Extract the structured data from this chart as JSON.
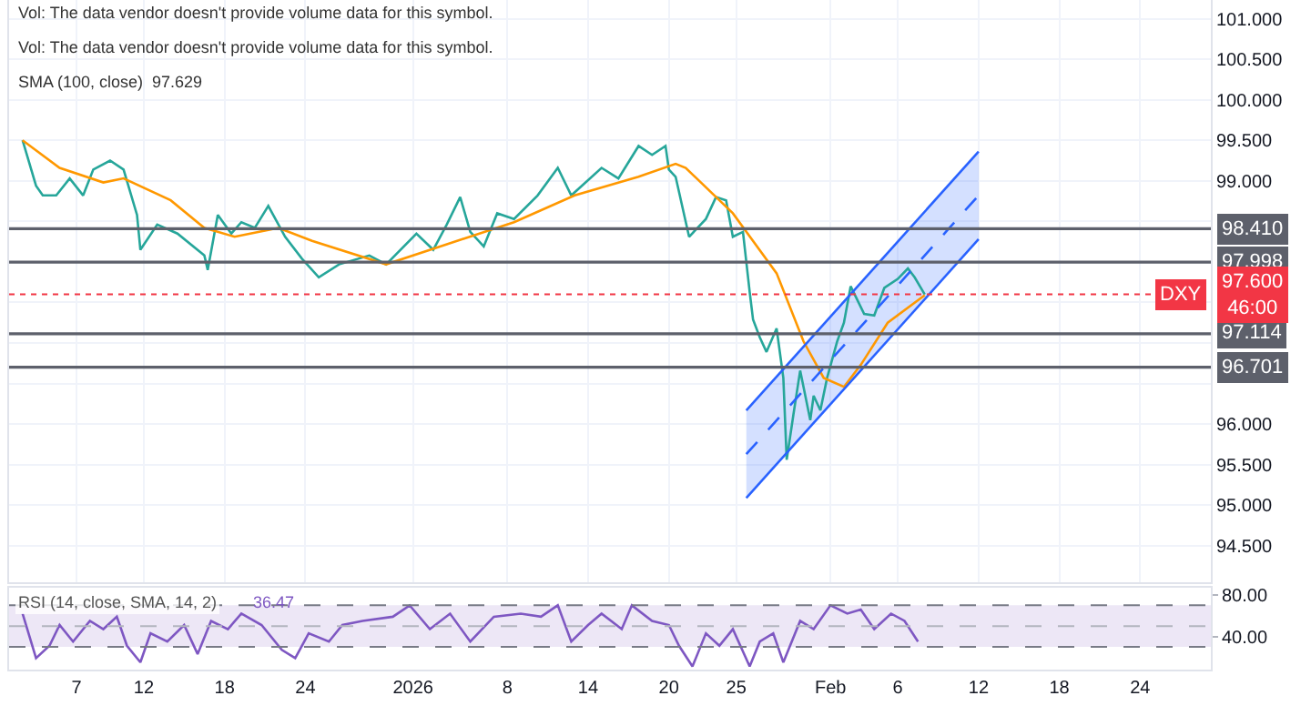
{
  "chart_data": [
    {
      "type": "line",
      "tick_labels": "y",
      "grid": true,
      "annotations": [
        "Vol: The data vendor doesn't provide volume data for this symbol.",
        "Vol: The data vendor doesn't provide volume data for this symbol.",
        "SMA (100, close)  97.629",
        {
          "text": "DXY",
          "y": 97.6
        }
      ],
      "xlim": [
        "2025-12-02",
        "2026-03-01T06:00"
      ],
      "xticks": [
        {
          "value": "2025-12-07",
          "label": null
        },
        {
          "value": "2025-12-12",
          "label": null
        },
        {
          "value": "2025-12-18",
          "label": null
        },
        {
          "value": "2025-12-24",
          "label": null
        },
        {
          "value": "2026-01-01",
          "label": null
        },
        {
          "value": "2026-01-08",
          "label": null
        },
        {
          "value": "2026-01-14",
          "label": null
        },
        {
          "value": "2026-01-20",
          "label": null
        },
        {
          "value": "2026-01-25",
          "label": null
        },
        {
          "value": "2026-02-01",
          "label": null
        },
        {
          "value": "2026-02-06",
          "label": null
        },
        {
          "value": "2026-02-12",
          "label": null
        },
        {
          "value": "2026-02-18",
          "label": null
        },
        {
          "value": "2026-02-24",
          "label": null
        }
      ],
      "ylim": [
        94.05,
        101.23
      ],
      "yticks": [
        {
          "value": 94.5,
          "label": "94.500"
        },
        {
          "value": 95,
          "label": "95.000"
        },
        {
          "value": 95.5,
          "label": "95.500"
        },
        {
          "value": 96,
          "label": "96.000"
        },
        {
          "value": 96.5,
          "label": null
        },
        {
          "value": 97,
          "label": null
        },
        {
          "value": 97.5,
          "label": null
        },
        {
          "value": 98,
          "label": null
        },
        {
          "value": 98.5,
          "label": null
        },
        {
          "value": 99,
          "label": "99.000"
        },
        {
          "value": 99.5,
          "label": "99.500"
        },
        {
          "value": 100,
          "label": "100.000"
        },
        {
          "value": 100.5,
          "label": "100.500"
        },
        {
          "value": 101,
          "label": "101.000"
        }
      ],
      "ref_lines": [
        {
          "axis": "y",
          "value": 98.41,
          "label": "98.410",
          "color": "#5d606b",
          "line_style": "solid"
        },
        {
          "axis": "y",
          "value": 97.998,
          "label": "97.998",
          "color": "#5d606b",
          "line_style": "solid"
        },
        {
          "axis": "y",
          "value": 97.114,
          "label": "97.114",
          "color": "#5d606b",
          "line_style": "solid"
        },
        {
          "axis": "y",
          "value": 96.701,
          "label": "96.701",
          "color": "#5d606b",
          "line_style": "solid"
        },
        {
          "axis": "y",
          "value": 97.6,
          "label": "97.600\n46:00",
          "color": "#f23645",
          "line_style": "dotted"
        }
      ],
      "series": [
        {
          "color": "#26a69a",
          "x": [
            "2025-12-03T00:00",
            "2025-12-04T00:00",
            "2025-12-04T12:00",
            "2025-12-05T12:00",
            "2025-12-06T12:00",
            "2025-12-07T12:00",
            "2025-12-08T06:00",
            "2025-12-09T12:00",
            "2025-12-10T12:00",
            "2025-12-11T12:00",
            "2025-12-11T18:00",
            "2025-12-13T00:00",
            "2025-12-14T12:00",
            "2025-12-16T12:00",
            "2025-12-16T18:00",
            "2025-12-17T12:00",
            "2025-12-18T12:00",
            "2025-12-19T06:00",
            "2025-12-20T06:00",
            "2025-12-21T06:00",
            "2025-12-22T12:00",
            "2025-12-23T18:00",
            "2025-12-25T00:00",
            "2025-12-26T12:00",
            "2025-12-28T18:00",
            "2025-12-30T00:00",
            "2026-01-01T06:00",
            "2026-01-02T12:00",
            "2026-01-03T12:00",
            "2026-01-04T12:00",
            "2026-01-05T06:00",
            "2026-01-06T06:00",
            "2026-01-07T06:00",
            "2026-01-08T12:00",
            "2026-01-10T06:00",
            "2026-01-11T18:00",
            "2026-01-12T18:00",
            "2026-01-15T00:00",
            "2026-01-16T06:00",
            "2026-01-17T18:00",
            "2026-01-18T18:00",
            "2026-01-19T18:00",
            "2026-01-20T00:00",
            "2026-01-20T12:00",
            "2026-01-21T12:00",
            "2026-01-22T18:00",
            "2026-01-23T12:00",
            "2026-01-24T06:00",
            "2026-01-24T18:00",
            "2026-01-25T12:00",
            "2026-01-26T00:00",
            "2026-01-26T06:00",
            "2026-01-26T18:00",
            "2026-01-27T06:00",
            "2026-01-28T00:00",
            "2026-01-28T12:00",
            "2026-01-28T18:00",
            "2026-01-29T06:00",
            "2026-01-29T18:00",
            "2026-01-30T12:00",
            "2026-01-30T18:00",
            "2026-01-31T06:00",
            "2026-01-31T18:00",
            "2026-02-01T12:00",
            "2026-02-02T00:00",
            "2026-02-02T12:00",
            "2026-02-03T12:00",
            "2026-02-04T06:00",
            "2026-02-05T00:00",
            "2026-02-06T00:00",
            "2026-02-06T18:00",
            "2026-02-07T06:00",
            "2026-02-08T00:00"
          ],
          "values": [
            99.5,
            98.94,
            98.82,
            98.82,
            99.03,
            98.82,
            99.14,
            99.25,
            99.14,
            98.58,
            98.15,
            98.46,
            98.35,
            98.08,
            97.9,
            98.58,
            98.35,
            98.49,
            98.42,
            98.69,
            98.31,
            98.04,
            97.81,
            97.97,
            98.08,
            97.97,
            98.35,
            98.15,
            98.46,
            98.8,
            98.37,
            98.19,
            98.6,
            98.53,
            98.82,
            99.16,
            98.82,
            99.16,
            99.03,
            99.43,
            99.32,
            99.43,
            99.14,
            99.05,
            98.31,
            98.53,
            98.8,
            98.76,
            98.31,
            98.37,
            97.63,
            97.29,
            97.07,
            96.89,
            97.18,
            96.57,
            95.56,
            96.12,
            96.66,
            96.05,
            96.35,
            96.17,
            96.57,
            97.02,
            97.25,
            97.7,
            97.36,
            97.34,
            97.68,
            97.79,
            97.92,
            97.81,
            97.6
          ]
        },
        {
          "color": "#ff9800",
          "x": [
            "2025-12-03T00:00",
            "2025-12-05T18:00",
            "2025-12-09T00:00",
            "2025-12-10T12:00",
            "2025-12-14T00:00",
            "2025-12-16T12:00",
            "2025-12-18T18:00",
            "2025-12-22T00:00",
            "2025-12-24T12:00",
            "2025-12-30T00:00",
            "2026-01-03T00:00",
            "2026-01-08T12:00",
            "2026-01-13T00:00",
            "2026-01-17T18:00",
            "2026-01-20T12:00",
            "2026-01-21T06:00",
            "2026-01-24T18:00",
            "2026-01-28T00:00",
            "2026-01-30T00:00",
            "2026-01-31T12:00",
            "2026-02-02T00:00",
            "2026-02-03T06:00",
            "2026-02-05T06:00",
            "2026-02-08T00:00"
          ],
          "values": [
            99.5,
            99.16,
            98.98,
            99.03,
            98.76,
            98.42,
            98.31,
            98.42,
            98.26,
            97.97,
            98.19,
            98.49,
            98.82,
            99.05,
            99.21,
            99.16,
            98.6,
            97.86,
            97.02,
            96.57,
            96.46,
            96.73,
            97.25,
            97.59
          ]
        },
        {
          "color": "#2962ff",
          "x": [
            "2026-01-25T18:00",
            "2026-02-12T00:00"
          ],
          "values": [
            96.17,
            99.36
          ]
        },
        {
          "color": "#2962ff",
          "x": [
            "2026-01-25T18:00",
            "2026-02-12T00:00"
          ],
          "values": [
            95.09,
            98.28
          ]
        },
        {
          "color": "#2962ff",
          "line_style": "dashed",
          "x": [
            "2026-01-25T18:00",
            "2026-02-12T00:00"
          ],
          "values": [
            95.63,
            98.82
          ],
          "lower": [
            95.09,
            98.28
          ],
          "upper": [
            96.17,
            99.36
          ]
        }
      ]
    },
    {
      "type": "line",
      "title": "RSI (14, close, SMA, 14, 2)",
      "annotations": [
        "36.47"
      ],
      "xlim": [
        "2025-12-02",
        "2026-03-01T06:00"
      ],
      "xticks": [
        {
          "value": "2025-12-07",
          "label": "7"
        },
        {
          "value": "2025-12-12",
          "label": "12"
        },
        {
          "value": "2025-12-18",
          "label": "18"
        },
        {
          "value": "2025-12-24",
          "label": "24"
        },
        {
          "value": "2026-01-01",
          "label": "2026"
        },
        {
          "value": "2026-01-08",
          "label": "8"
        },
        {
          "value": "2026-01-14",
          "label": "14"
        },
        {
          "value": "2026-01-20",
          "label": "20"
        },
        {
          "value": "2026-01-25",
          "label": "25"
        },
        {
          "value": "2026-02-01",
          "label": "Feb"
        },
        {
          "value": "2026-02-06",
          "label": "6"
        },
        {
          "value": "2026-02-12",
          "label": "12"
        },
        {
          "value": "2026-02-18",
          "label": "18"
        },
        {
          "value": "2026-02-24",
          "label": "24"
        }
      ],
      "ylim": [
        8,
        87
      ],
      "yticks": [
        {
          "value": 40,
          "label": "40.00"
        },
        {
          "value": 80,
          "label": "80.00"
        }
      ],
      "bands": [
        {
          "axis": "y",
          "from": 30,
          "to": 70,
          "color": "#ede7f6"
        }
      ],
      "ref_lines": [
        {
          "axis": "y",
          "value": 70,
          "color": "#787b86",
          "line_style": "dashed"
        },
        {
          "axis": "y",
          "value": 50,
          "color": "#b2b5be",
          "line_style": "dashed"
        },
        {
          "axis": "y",
          "value": 30,
          "color": "#787b86",
          "line_style": "dashed"
        }
      ],
      "series": [
        {
          "color": "#7e57c2",
          "x": [
            "2025-12-03T00:00",
            "2025-12-04T00:00",
            "2025-12-05T00:00",
            "2025-12-05T18:00",
            "2025-12-06T18:00",
            "2025-12-08T00:00",
            "2025-12-09T00:00",
            "2025-12-10T00:00",
            "2025-12-10T18:00",
            "2025-12-11T18:00",
            "2025-12-12T12:00",
            "2025-12-13T18:00",
            "2025-12-15T00:00",
            "2025-12-16T00:00",
            "2025-12-17T00:00",
            "2025-12-18T06:00",
            "2025-12-19T06:00",
            "2025-12-20T18:00",
            "2025-12-22T06:00",
            "2025-12-23T06:00",
            "2025-12-24T06:00",
            "2025-12-25T18:00",
            "2025-12-26T18:00",
            "2025-12-28T06:00",
            "2025-12-30T12:00",
            "2025-12-31T18:00",
            "2026-01-02T06:00",
            "2026-01-03T18:00",
            "2026-01-05T06:00",
            "2026-01-07T00:00",
            "2026-01-09T00:00",
            "2026-01-10T12:00",
            "2026-01-11T18:00",
            "2026-01-12T18:00",
            "2026-01-14T00:00",
            "2026-01-15T00:00",
            "2026-01-16T12:00",
            "2026-01-17T06:00",
            "2026-01-18T18:00",
            "2026-01-20T00:00",
            "2026-01-20T18:00",
            "2026-01-21T18:00",
            "2026-01-22T18:00",
            "2026-01-23T18:00",
            "2026-01-24T18:00",
            "2026-01-26T00:00",
            "2026-01-26T18:00",
            "2026-01-27T18:00",
            "2026-01-28T12:00",
            "2026-01-29T18:00",
            "2026-01-30T18:00",
            "2026-02-01T00:00",
            "2026-02-02T06:00",
            "2026-02-03T06:00",
            "2026-02-04T06:00",
            "2026-02-05T12:00",
            "2026-02-06T12:00",
            "2026-02-07T12:00"
          ],
          "values": [
            62,
            19,
            31,
            51,
            35,
            55,
            47,
            59,
            31,
            15,
            43,
            35,
            51,
            23,
            55,
            47,
            62,
            51,
            27,
            19,
            43,
            35,
            51,
            55,
            59,
            70,
            47,
            62,
            35,
            59,
            62,
            59,
            70,
            35,
            51,
            62,
            47,
            70,
            55,
            51,
            31,
            11,
            43,
            31,
            47,
            11,
            35,
            43,
            15,
            55,
            47,
            70,
            62,
            66,
            47,
            62,
            55,
            35
          ]
        }
      ]
    }
  ]
}
